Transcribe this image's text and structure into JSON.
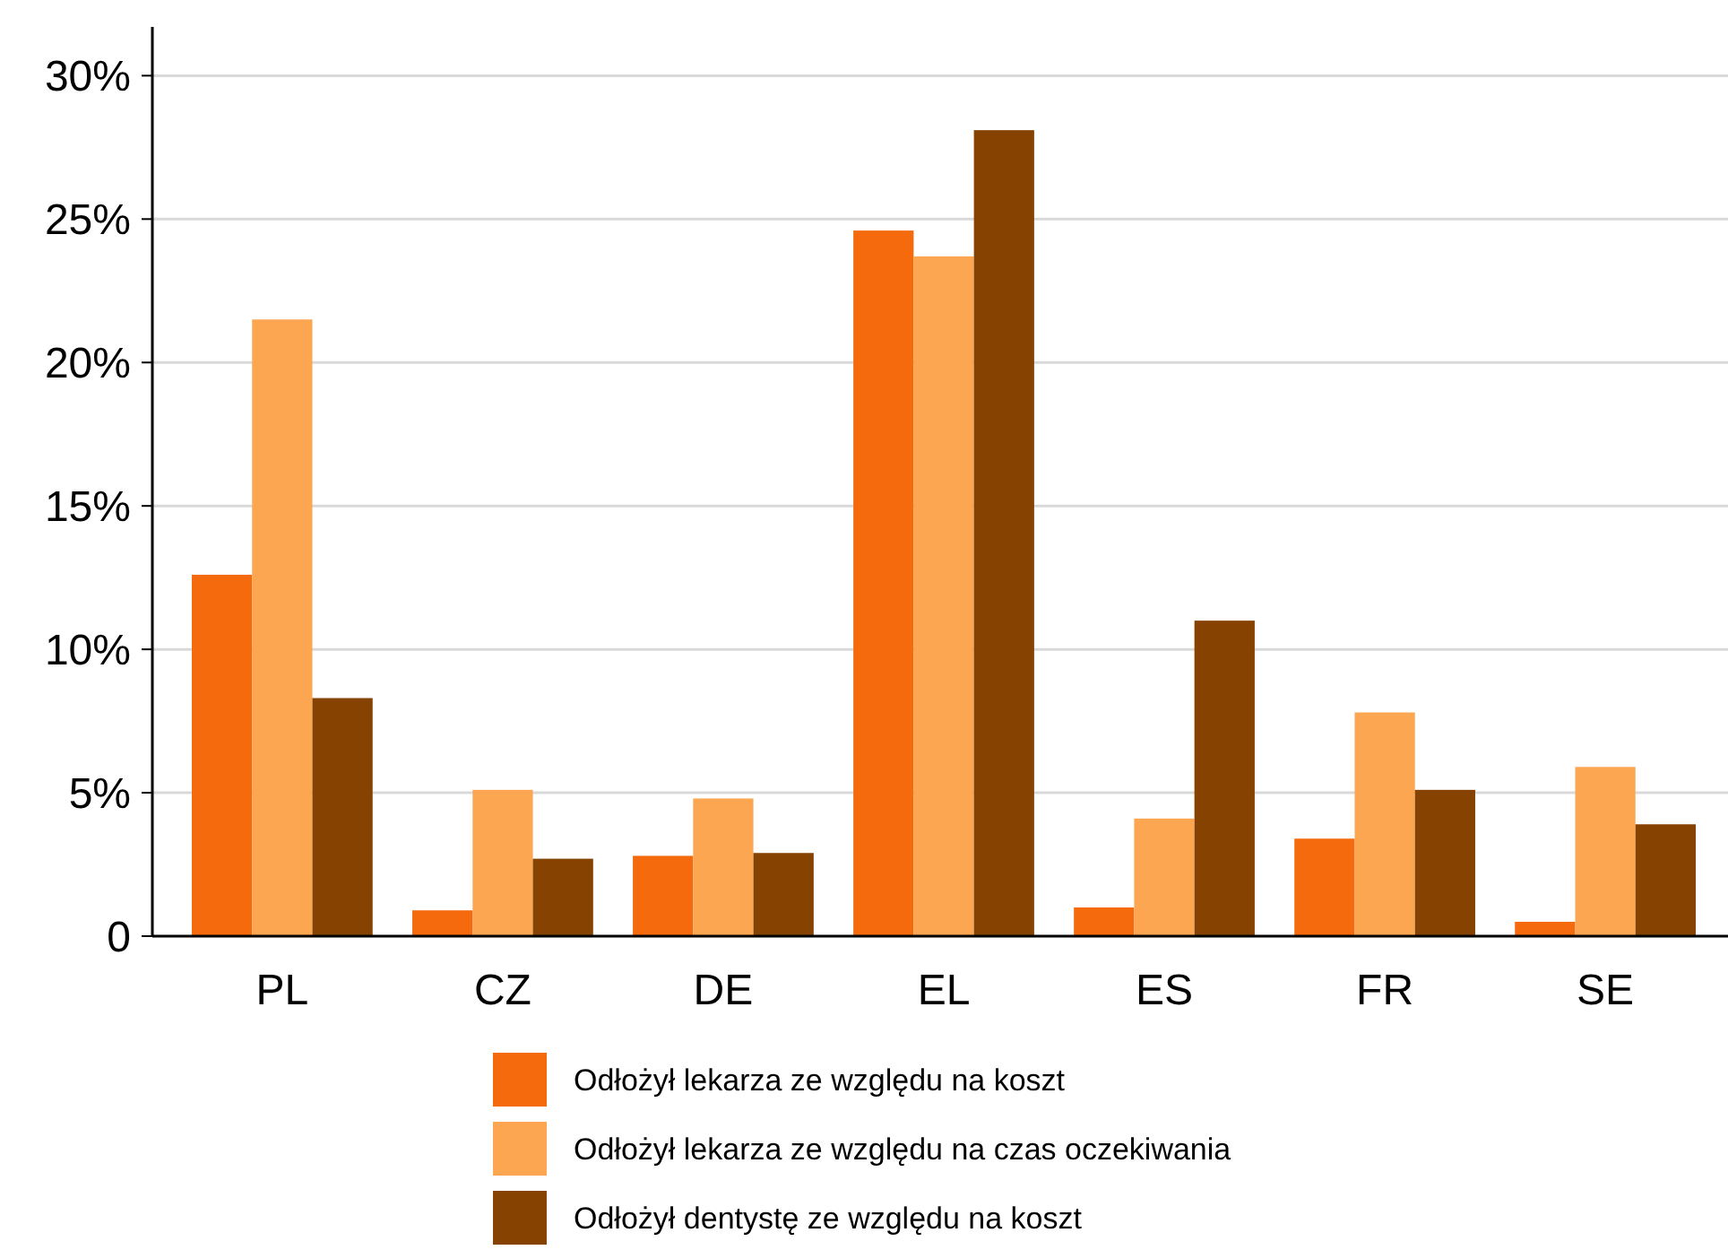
{
  "chart_data": {
    "type": "bar",
    "categories": [
      "PL",
      "CZ",
      "DE",
      "EL",
      "ES",
      "FR",
      "SE"
    ],
    "series": [
      {
        "name": "Odłożył lekarza ze względu na koszt",
        "color": "#f46a0c",
        "values": [
          12.6,
          0.9,
          2.8,
          24.6,
          1.0,
          3.4,
          0.5
        ]
      },
      {
        "name": "Odłożył lekarza ze względu na czas oczekiwania",
        "color": "#fda651",
        "values": [
          21.5,
          5.1,
          4.8,
          23.7,
          4.1,
          7.8,
          5.9
        ]
      },
      {
        "name": "Odłożył dentystę ze względu na koszt",
        "color": "#854200",
        "values": [
          8.3,
          2.7,
          2.9,
          28.1,
          11.0,
          5.1,
          3.9
        ]
      }
    ],
    "ylim": [
      0,
      31.7
    ],
    "yticks": [
      {
        "value": 0,
        "label": "0"
      },
      {
        "value": 5,
        "label": "5%"
      },
      {
        "value": 10,
        "label": "10%"
      },
      {
        "value": 15,
        "label": "15%"
      },
      {
        "value": 20,
        "label": "20%"
      },
      {
        "value": 25,
        "label": "25%"
      },
      {
        "value": 30,
        "label": "30%"
      }
    ],
    "grid": "y",
    "legend": "bottom"
  }
}
